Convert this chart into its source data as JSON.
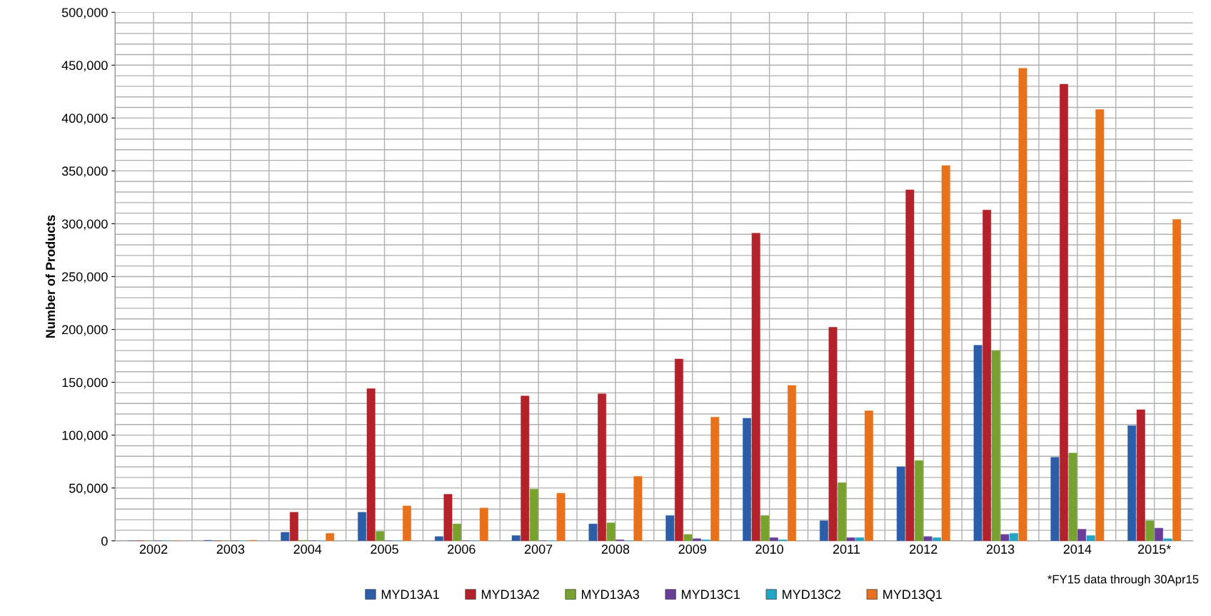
{
  "chart_data": {
    "type": "bar",
    "ylabel": "Number of Products",
    "categories": [
      "2002",
      "2003",
      "2004",
      "2005",
      "2006",
      "2007",
      "2008",
      "2009",
      "2010",
      "2011",
      "2012",
      "2013",
      "2014",
      "2015*"
    ],
    "series": [
      {
        "name": "MYD13A1",
        "color": "#2c5ea8",
        "values": [
          0,
          500,
          8000,
          27000,
          4000,
          5000,
          16000,
          24000,
          116000,
          19000,
          70000,
          185000,
          79000,
          109000
        ]
      },
      {
        "name": "MYD13A2",
        "color": "#b3222a",
        "values": [
          0,
          0,
          27000,
          144000,
          44000,
          137000,
          139000,
          172000,
          291000,
          202000,
          332000,
          313000,
          432000,
          124000
        ]
      },
      {
        "name": "MYD13A3",
        "color": "#78a22f",
        "values": [
          0,
          0,
          500,
          9000,
          16000,
          49000,
          17000,
          6000,
          24000,
          55000,
          76000,
          180000,
          83000,
          19000
        ]
      },
      {
        "name": "MYD13C1",
        "color": "#6a3d9a",
        "values": [
          0,
          0,
          0,
          0,
          0,
          0,
          1000,
          2000,
          3000,
          3000,
          4000,
          6000,
          11000,
          12000
        ]
      },
      {
        "name": "MYD13C2",
        "color": "#23a5c4",
        "values": [
          0,
          0,
          0,
          0,
          0,
          0,
          0,
          1000,
          1000,
          3000,
          3000,
          7000,
          5000,
          2000
        ]
      },
      {
        "name": "MYD13Q1",
        "color": "#e8711c",
        "values": [
          0,
          500,
          7000,
          33000,
          31000,
          45000,
          61000,
          117000,
          147000,
          123000,
          355000,
          447000,
          408000,
          304000
        ]
      }
    ],
    "ylim": [
      0,
      500000
    ],
    "yticks": [
      {
        "value": 0,
        "label": "0"
      },
      {
        "value": 50000,
        "label": "50,000"
      },
      {
        "value": 100000,
        "label": "100,000"
      },
      {
        "value": 150000,
        "label": "150,000"
      },
      {
        "value": 200000,
        "label": "200,000"
      },
      {
        "value": 250000,
        "label": "250,000"
      },
      {
        "value": 300000,
        "label": "300,000"
      },
      {
        "value": 350000,
        "label": "350,000"
      },
      {
        "value": 400000,
        "label": "400,000"
      },
      {
        "value": 450000,
        "label": "450,000"
      },
      {
        "value": 500000,
        "label": "500,000"
      }
    ],
    "grid": true,
    "legend": "bottom",
    "annotations": [
      "*FY15 data through 30Apr15"
    ]
  }
}
